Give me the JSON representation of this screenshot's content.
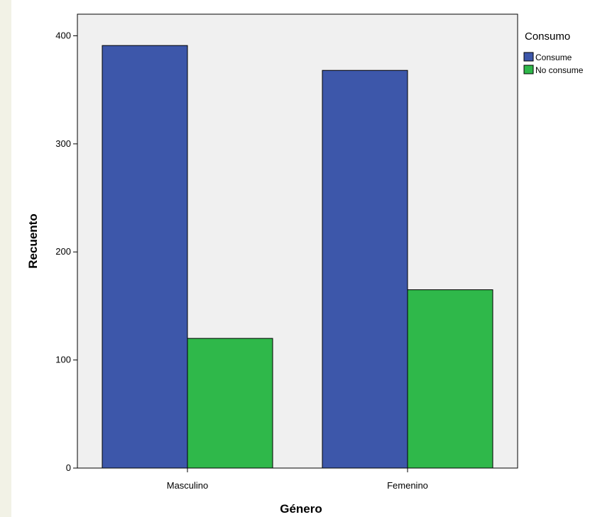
{
  "chart_data": {
    "type": "bar",
    "categories": [
      "Masculino",
      "Femenino"
    ],
    "series": [
      {
        "name": "Consume",
        "values": [
          391,
          368
        ],
        "color": "#3d57aa"
      },
      {
        "name": "No consume",
        "values": [
          120,
          165
        ],
        "color": "#2fb84a"
      }
    ],
    "xlabel": "Género",
    "ylabel": "Recuento",
    "ylim": [
      0,
      420
    ],
    "yticks": [
      0,
      100,
      200,
      300,
      400
    ],
    "legend": {
      "title": "Consumo",
      "position": "right"
    },
    "plot_background": "#f0f0f0",
    "grid": false
  }
}
